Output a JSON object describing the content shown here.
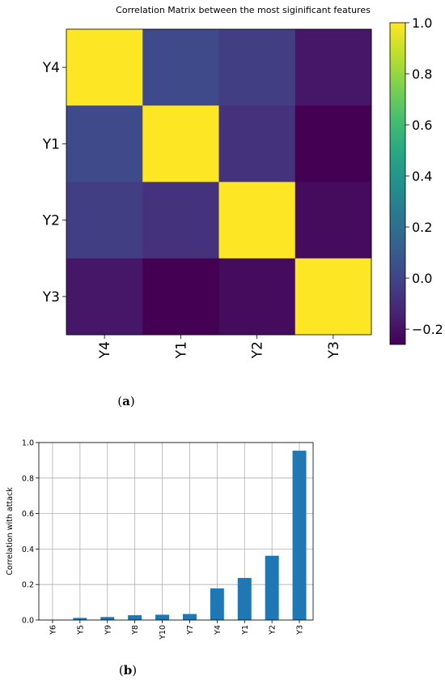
{
  "figure_a": {
    "caption_open": "(",
    "caption_letter": "a",
    "caption_close": ")",
    "chart_data": {
      "type": "heatmap",
      "title": "Correlation Matrix between the most siginificant features",
      "rows": [
        "Y4",
        "Y1",
        "Y2",
        "Y3"
      ],
      "columns": [
        "Y4",
        "Y1",
        "Y2",
        "Y3"
      ],
      "values": [
        [
          1.0,
          0.02,
          -0.03,
          -0.18
        ],
        [
          0.02,
          1.0,
          -0.08,
          -0.26
        ],
        [
          -0.03,
          -0.08,
          1.0,
          -0.22
        ],
        [
          -0.18,
          -0.26,
          -0.22,
          1.0
        ]
      ],
      "colorbar": {
        "colormap": "viridis",
        "vmin": -0.26,
        "vmax": 1.0,
        "ticks": [
          "1.0",
          "0.8",
          "0.6",
          "0.4",
          "0.2",
          "0.0",
          "−0.2"
        ],
        "tick_values": [
          1.0,
          0.8,
          0.6,
          0.4,
          0.2,
          0.0,
          -0.2
        ]
      }
    }
  },
  "figure_b": {
    "caption_open": "(",
    "caption_letter": "b",
    "caption_close": ")",
    "chart_data": {
      "type": "bar",
      "categories": [
        "Y6",
        "Y5",
        "Y9",
        "Y8",
        "Y10",
        "Y7",
        "Y4",
        "Y1",
        "Y2",
        "Y3"
      ],
      "values": [
        0.0,
        0.012,
        0.017,
        0.027,
        0.03,
        0.034,
        0.178,
        0.237,
        0.362,
        0.954
      ],
      "ylabel": "Correlation with attack",
      "ylim": [
        0,
        1.0
      ],
      "yticks": [
        "0.0",
        "0.2",
        "0.4",
        "0.6",
        "0.8",
        "1.0"
      ],
      "grid": true,
      "bar_color": "#1f77b4"
    }
  }
}
